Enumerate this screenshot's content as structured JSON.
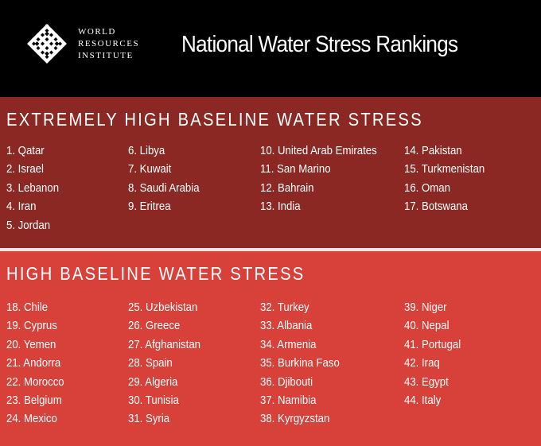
{
  "org": {
    "logo_icon": "wri-knot-logo-icon",
    "line1": "WORLD",
    "line2": "RESOURCES",
    "line3": "INSTITUTE"
  },
  "title": "National Water Stress Rankings",
  "colors": {
    "header_bg": "#000000",
    "extreme_bg": "#8b2823",
    "high_bg": "#d8413a",
    "divider": "#f2e4e2",
    "text": "#ffffff"
  },
  "extreme": {
    "heading": "EXTREMELY HIGH BASELINE WATER STRESS",
    "columns": [
      [
        "1. Qatar",
        "2. Israel",
        "3. Lebanon",
        "4. Iran",
        "5. Jordan"
      ],
      [
        "6. Libya",
        "7. Kuwait",
        "8. Saudi Arabia",
        "9. Eritrea"
      ],
      [
        "10. United Arab Emirates",
        "11. San Marino",
        "12. Bahrain",
        "13. India"
      ],
      [
        "14. Pakistan",
        "15. Turkmenistan",
        "16. Oman",
        "17. Botswana"
      ]
    ]
  },
  "high": {
    "heading": "HIGH BASELINE WATER STRESS",
    "columns": [
      [
        "18. Chile",
        "19. Cyprus",
        "20. Yemen",
        "21. Andorra",
        "22. Morocco",
        "23. Belgium",
        "24. Mexico"
      ],
      [
        "25. Uzbekistan",
        "26. Greece",
        "27. Afghanistan",
        "28. Spain",
        "29. Algeria",
        "30. Tunisia",
        "31. Syria"
      ],
      [
        "32. Turkey",
        "33. Albania",
        "34. Armenia",
        "35. Burkina Faso",
        "36. Djibouti",
        "37. Namibia",
        "38. Kyrgyzstan"
      ],
      [
        "39. Niger",
        "40. Nepal",
        "41. Portugal",
        "42. Iraq",
        "43. Egypt",
        "44. Italy"
      ]
    ]
  }
}
